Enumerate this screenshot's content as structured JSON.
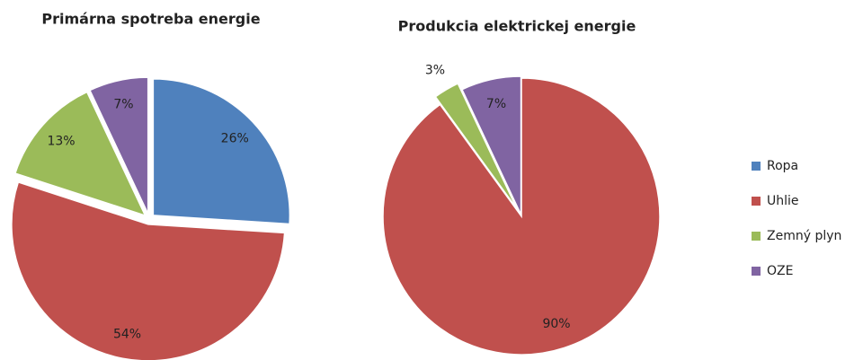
{
  "chart_data": [
    {
      "type": "pie",
      "title": "Primárna spotreba energie",
      "values": [
        26,
        54,
        13,
        7
      ],
      "value_labels": [
        "26%",
        "54%",
        "13%",
        "7%"
      ]
    },
    {
      "type": "pie",
      "title": "Produkcia elektrickej energie",
      "values": [
        0,
        90,
        3,
        7
      ],
      "value_labels": [
        null,
        "90%",
        "3%",
        "7%"
      ]
    }
  ],
  "legend": {
    "categories": [
      "Ropa",
      "Uhlie",
      "Zemný plyn",
      "OZE"
    ],
    "colors": [
      "#4f81bd",
      "#c0504d",
      "#9bbb59",
      "#8064a2"
    ]
  }
}
